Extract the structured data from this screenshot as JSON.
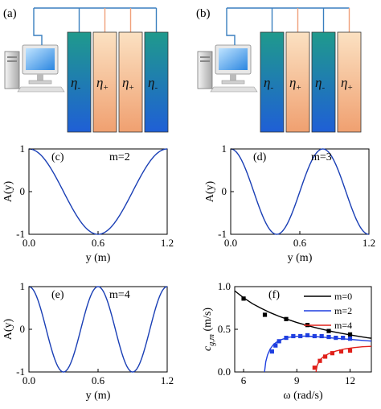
{
  "panels": {
    "a": {
      "label": "(a)",
      "cells": [
        {
          "symbol": "η",
          "sign": "-",
          "kind": "minus"
        },
        {
          "symbol": "η",
          "sign": "+",
          "kind": "plus"
        },
        {
          "symbol": "η",
          "sign": "+",
          "kind": "plus"
        },
        {
          "symbol": "η",
          "sign": "-",
          "kind": "minus"
        }
      ]
    },
    "b": {
      "label": "(b)",
      "cells": [
        {
          "symbol": "η",
          "sign": "-",
          "kind": "minus"
        },
        {
          "symbol": "η",
          "sign": "+",
          "kind": "plus"
        },
        {
          "symbol": "η",
          "sign": "-",
          "kind": "minus"
        },
        {
          "symbol": "η",
          "sign": "+",
          "kind": "plus"
        }
      ]
    }
  },
  "colors": {
    "minus_top": "#1f9a8c",
    "minus_bottom": "#1f5fd6",
    "plus_top": "#fbe1c2",
    "plus_bottom": "#f0a070",
    "wire_minus": "#3a7fbf",
    "wire_plus": "#f0a07a",
    "curve": "#1a3fb5"
  },
  "chart_data": [
    {
      "id": "c",
      "type": "line",
      "panel_label": "(c)",
      "annotation": "m=2",
      "xlabel": "y (m)",
      "ylabel": "A(y)",
      "xlim": [
        0,
        1.2
      ],
      "ylim": [
        -1,
        1
      ],
      "xticks": [
        "0.0",
        "0.6",
        "1.2"
      ],
      "yticks": [
        "1",
        "0",
        "-1"
      ],
      "mode": 2,
      "series": [
        {
          "function": "cos(m*pi*y/1.2)",
          "color": "#1a3fb5"
        }
      ]
    },
    {
      "id": "d",
      "type": "line",
      "panel_label": "(d)",
      "annotation": "m=3",
      "xlabel": "y (m)",
      "ylabel": "A(y)",
      "xlim": [
        0,
        1.2
      ],
      "ylim": [
        -1,
        1
      ],
      "xticks": [
        "0.0",
        "0.6",
        "1.2"
      ],
      "yticks": [
        "1",
        "0",
        "-1"
      ],
      "mode": 3,
      "series": [
        {
          "function": "cos(m*pi*y/1.2)",
          "color": "#1a3fb5"
        }
      ]
    },
    {
      "id": "e",
      "type": "line",
      "panel_label": "(e)",
      "annotation": "m=4",
      "xlabel": "y (m)",
      "ylabel": "A(y)",
      "xlim": [
        0,
        1.2
      ],
      "ylim": [
        -1,
        1
      ],
      "xticks": [
        "0.0",
        "0.6",
        "1.2"
      ],
      "yticks": [
        "1",
        "0",
        "-1"
      ],
      "mode": 4,
      "series": [
        {
          "function": "cos(m*pi*y/1.2)",
          "color": "#1a3fb5"
        }
      ]
    },
    {
      "id": "f",
      "type": "line",
      "panel_label": "(f)",
      "xlabel": "ω (rad/s)",
      "ylabel_main": "c",
      "ylabel_sub": "g,m",
      "ylabel_unit": "(m/s)",
      "xlim": [
        5.5,
        13.2
      ],
      "ylim": [
        0,
        1.0
      ],
      "xticks": [
        6,
        9,
        12
      ],
      "yticks": [
        0.0,
        0.5,
        1.0
      ],
      "ytick_labels": [
        "0.0",
        "0.5",
        "1.0"
      ],
      "legend_position": "top-right",
      "series": [
        {
          "name": "m=0",
          "color": "#000000",
          "curve": [
            [
              5.5,
              0.95
            ],
            [
              6,
              0.87
            ],
            [
              6.5,
              0.8
            ],
            [
              7,
              0.745
            ],
            [
              7.5,
              0.695
            ],
            [
              8,
              0.652
            ],
            [
              8.5,
              0.615
            ],
            [
              9,
              0.58
            ],
            [
              9.5,
              0.55
            ],
            [
              10,
              0.522
            ],
            [
              10.5,
              0.497
            ],
            [
              11,
              0.474
            ],
            [
              11.5,
              0.453
            ],
            [
              12,
              0.435
            ],
            [
              12.5,
              0.417
            ],
            [
              13,
              0.4
            ],
            [
              13.2,
              0.395
            ]
          ],
          "points": [
            [
              6.0,
              0.86
            ],
            [
              7.2,
              0.67
            ],
            [
              8.4,
              0.62
            ],
            [
              9.6,
              0.55
            ],
            [
              10.8,
              0.48
            ],
            [
              12.0,
              0.44
            ]
          ]
        },
        {
          "name": "m=2",
          "color": "#1f3fe0",
          "curve": [
            [
              7.18,
              0.0
            ],
            [
              7.25,
              0.12
            ],
            [
              7.35,
              0.2
            ],
            [
              7.5,
              0.27
            ],
            [
              7.7,
              0.325
            ],
            [
              8.0,
              0.37
            ],
            [
              8.5,
              0.405
            ],
            [
              9.0,
              0.418
            ],
            [
              9.5,
              0.42
            ],
            [
              10,
              0.415
            ],
            [
              10.5,
              0.407
            ],
            [
              11,
              0.398
            ],
            [
              11.5,
              0.39
            ],
            [
              12,
              0.382
            ],
            [
              12.5,
              0.373
            ],
            [
              13,
              0.365
            ],
            [
              13.2,
              0.362
            ]
          ],
          "points": [
            [
              7.6,
              0.24
            ],
            [
              7.8,
              0.31
            ],
            [
              8.0,
              0.36
            ],
            [
              8.4,
              0.4
            ],
            [
              8.8,
              0.42
            ],
            [
              9.2,
              0.42
            ],
            [
              9.6,
              0.43
            ],
            [
              10.0,
              0.42
            ],
            [
              10.4,
              0.42
            ],
            [
              10.8,
              0.41
            ],
            [
              11.2,
              0.4
            ],
            [
              11.6,
              0.4
            ],
            [
              12.0,
              0.39
            ]
          ]
        },
        {
          "name": "m=4",
          "color": "#e0201a",
          "curve": [
            [
              10.08,
              0.0
            ],
            [
              10.15,
              0.08
            ],
            [
              10.3,
              0.14
            ],
            [
              10.5,
              0.18
            ],
            [
              10.8,
              0.215
            ],
            [
              11.2,
              0.245
            ],
            [
              11.7,
              0.27
            ],
            [
              12.2,
              0.285
            ],
            [
              12.7,
              0.295
            ],
            [
              13.2,
              0.3
            ]
          ],
          "points": [
            [
              10.0,
              0.05
            ],
            [
              10.3,
              0.13
            ],
            [
              10.6,
              0.18
            ],
            [
              11.0,
              0.22
            ],
            [
              11.5,
              0.24
            ],
            [
              12.0,
              0.25
            ]
          ]
        }
      ]
    }
  ]
}
